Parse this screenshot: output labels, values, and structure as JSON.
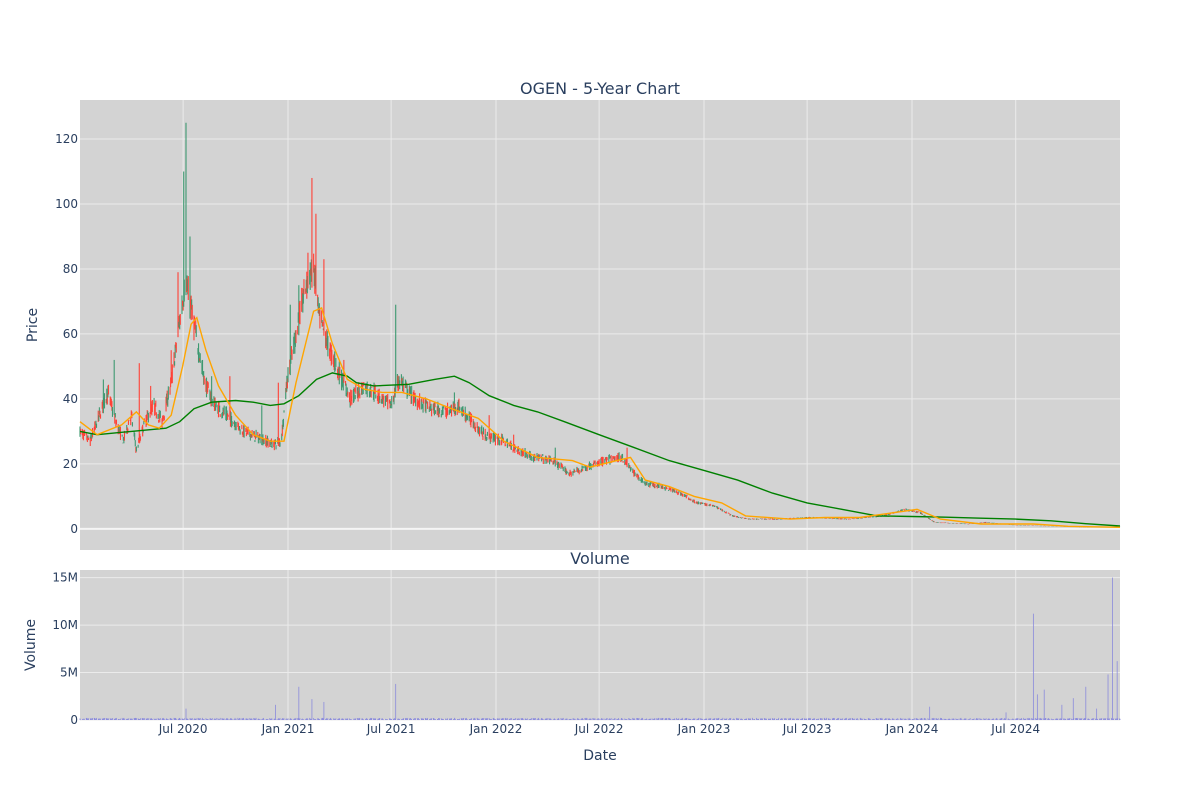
{
  "chart_data": [
    {
      "type": "candlestick",
      "title": "OGEN - 5-Year Chart",
      "xlabel": "",
      "ylabel": "Price",
      "xlim": [
        "2020-01-02",
        "2024-12-31"
      ],
      "ylim": [
        -6.5,
        132
      ],
      "yticks": [
        0,
        20,
        40,
        60,
        80,
        100,
        120
      ],
      "background": "#d3d3d3",
      "grid": true,
      "legend": "none",
      "colors": {
        "increasing": "#3d9970",
        "decreasing": "#ff4136",
        "ma_short": "#ffa500",
        "ma_long": "#008000"
      },
      "price_anchors": [
        [
          "2020-01-02",
          30
        ],
        [
          "2020-01-20",
          27
        ],
        [
          "2020-02-05",
          35
        ],
        [
          "2020-02-20",
          42
        ],
        [
          "2020-03-05",
          33
        ],
        [
          "2020-03-18",
          27
        ],
        [
          "2020-04-01",
          35
        ],
        [
          "2020-04-10",
          24
        ],
        [
          "2020-04-25",
          33
        ],
        [
          "2020-05-10",
          38
        ],
        [
          "2020-05-25",
          33
        ],
        [
          "2020-06-10",
          45
        ],
        [
          "2020-06-25",
          64
        ],
        [
          "2020-07-05",
          76
        ],
        [
          "2020-07-15",
          68
        ],
        [
          "2020-07-25",
          58
        ],
        [
          "2020-08-08",
          45
        ],
        [
          "2020-08-25",
          38
        ],
        [
          "2020-09-15",
          35
        ],
        [
          "2020-10-15",
          30
        ],
        [
          "2020-11-10",
          28
        ],
        [
          "2020-12-05",
          26
        ],
        [
          "2020-12-20",
          27
        ],
        [
          "2020-12-30",
          45
        ],
        [
          "2021-01-15",
          60
        ],
        [
          "2021-02-01",
          75
        ],
        [
          "2021-02-15",
          80
        ],
        [
          "2021-02-25",
          65
        ],
        [
          "2021-03-15",
          55
        ],
        [
          "2021-04-01",
          48
        ],
        [
          "2021-04-20",
          40
        ],
        [
          "2021-05-15",
          44
        ],
        [
          "2021-06-10",
          41
        ],
        [
          "2021-07-01",
          38
        ],
        [
          "2021-07-15",
          46
        ],
        [
          "2021-08-10",
          40
        ],
        [
          "2021-09-10",
          37
        ],
        [
          "2021-10-10",
          36
        ],
        [
          "2021-10-25",
          38
        ],
        [
          "2021-11-15",
          34
        ],
        [
          "2021-12-10",
          29
        ],
        [
          "2022-01-15",
          27
        ],
        [
          "2022-02-10",
          24
        ],
        [
          "2022-03-10",
          22
        ],
        [
          "2022-04-10",
          21
        ],
        [
          "2022-05-10",
          17
        ],
        [
          "2022-06-10",
          19
        ],
        [
          "2022-07-10",
          21
        ],
        [
          "2022-08-10",
          22
        ],
        [
          "2022-09-01",
          17
        ],
        [
          "2022-09-20",
          14
        ],
        [
          "2022-10-20",
          13
        ],
        [
          "2022-11-20",
          11
        ],
        [
          "2022-12-20",
          8
        ],
        [
          "2023-01-20",
          7
        ],
        [
          "2023-02-20",
          4
        ],
        [
          "2023-03-20",
          3
        ],
        [
          "2023-05-10",
          3
        ],
        [
          "2023-07-10",
          3.5
        ],
        [
          "2023-09-10",
          3
        ],
        [
          "2023-11-10",
          4
        ],
        [
          "2023-12-20",
          6
        ],
        [
          "2024-01-15",
          5
        ],
        [
          "2024-02-10",
          2
        ],
        [
          "2024-04-10",
          1.5
        ],
        [
          "2024-05-10",
          2
        ],
        [
          "2024-07-10",
          1
        ],
        [
          "2024-09-10",
          0.8
        ],
        [
          "2024-11-10",
          0.5
        ],
        [
          "2024-12-31",
          0.6
        ]
      ],
      "spikes": [
        [
          "2020-02-12",
          46
        ],
        [
          "2020-03-01",
          52
        ],
        [
          "2020-04-15",
          51
        ],
        [
          "2020-05-05",
          44
        ],
        [
          "2020-06-10",
          55
        ],
        [
          "2020-06-22",
          79
        ],
        [
          "2020-07-02",
          110
        ],
        [
          "2020-07-06",
          125
        ],
        [
          "2020-07-12",
          90
        ],
        [
          "2020-08-20",
          47
        ],
        [
          "2020-09-20",
          47
        ],
        [
          "2020-11-15",
          38
        ],
        [
          "2020-12-15",
          45
        ],
        [
          "2021-01-05",
          69
        ],
        [
          "2021-01-20",
          75
        ],
        [
          "2021-02-05",
          85
        ],
        [
          "2021-02-12",
          108
        ],
        [
          "2021-02-20",
          97
        ],
        [
          "2021-03-05",
          83
        ],
        [
          "2021-04-10",
          52
        ],
        [
          "2021-07-10",
          69
        ],
        [
          "2021-10-20",
          42
        ],
        [
          "2021-12-20",
          35
        ],
        [
          "2022-02-01",
          29
        ],
        [
          "2022-04-15",
          25
        ],
        [
          "2022-08-20",
          25
        ]
      ],
      "ma_short": [
        [
          "2020-01-02",
          33
        ],
        [
          "2020-02-01",
          29
        ],
        [
          "2020-03-15",
          32
        ],
        [
          "2020-04-10",
          36
        ],
        [
          "2020-05-01",
          32
        ],
        [
          "2020-05-20",
          31
        ],
        [
          "2020-06-10",
          35
        ],
        [
          "2020-06-30",
          50
        ],
        [
          "2020-07-15",
          63
        ],
        [
          "2020-07-25",
          65
        ],
        [
          "2020-08-10",
          55
        ],
        [
          "2020-09-01",
          44
        ],
        [
          "2020-10-01",
          35
        ],
        [
          "2020-11-01",
          29
        ],
        [
          "2020-12-01",
          27
        ],
        [
          "2020-12-25",
          27
        ],
        [
          "2021-01-15",
          45
        ],
        [
          "2021-02-15",
          67
        ],
        [
          "2021-03-01",
          68
        ],
        [
          "2021-03-20",
          57
        ],
        [
          "2021-04-15",
          46
        ],
        [
          "2021-05-15",
          43
        ],
        [
          "2021-06-15",
          42
        ],
        [
          "2021-07-20",
          42
        ],
        [
          "2021-09-01",
          40
        ],
        [
          "2021-10-15",
          37
        ],
        [
          "2021-12-01",
          34
        ],
        [
          "2022-01-15",
          27
        ],
        [
          "2022-03-15",
          22
        ],
        [
          "2022-05-15",
          21
        ],
        [
          "2022-06-15",
          19
        ],
        [
          "2022-08-01",
          21
        ],
        [
          "2022-08-25",
          22
        ],
        [
          "2022-09-20",
          15
        ],
        [
          "2022-11-01",
          13
        ],
        [
          "2022-12-15",
          10
        ],
        [
          "2023-02-01",
          8
        ],
        [
          "2023-03-15",
          4
        ],
        [
          "2023-06-01",
          3
        ],
        [
          "2023-08-01",
          3.5
        ],
        [
          "2023-10-01",
          3.5
        ],
        [
          "2023-12-01",
          5
        ],
        [
          "2024-01-10",
          6
        ],
        [
          "2024-02-20",
          3
        ],
        [
          "2024-05-01",
          1.5
        ],
        [
          "2024-08-01",
          1.5
        ],
        [
          "2024-10-01",
          0.8
        ],
        [
          "2024-12-31",
          0.5
        ]
      ],
      "ma_long": [
        [
          "2020-01-02",
          30
        ],
        [
          "2020-02-01",
          29
        ],
        [
          "2020-04-01",
          30
        ],
        [
          "2020-06-01",
          31
        ],
        [
          "2020-06-25",
          33
        ],
        [
          "2020-07-20",
          37
        ],
        [
          "2020-08-20",
          39
        ],
        [
          "2020-10-01",
          39.5
        ],
        [
          "2020-11-01",
          39
        ],
        [
          "2020-12-01",
          38
        ],
        [
          "2020-12-25",
          38.5
        ],
        [
          "2021-01-20",
          41
        ],
        [
          "2021-02-20",
          46
        ],
        [
          "2021-03-20",
          48
        ],
        [
          "2021-04-15",
          47
        ],
        [
          "2021-05-01",
          45
        ],
        [
          "2021-06-01",
          44
        ],
        [
          "2021-08-01",
          44.5
        ],
        [
          "2021-09-15",
          46
        ],
        [
          "2021-10-20",
          47
        ],
        [
          "2021-11-15",
          45
        ],
        [
          "2021-12-20",
          41
        ],
        [
          "2022-02-01",
          38
        ],
        [
          "2022-03-15",
          36
        ],
        [
          "2022-05-01",
          33
        ],
        [
          "2022-07-01",
          29
        ],
        [
          "2022-09-01",
          25
        ],
        [
          "2022-11-01",
          21
        ],
        [
          "2023-01-01",
          18
        ],
        [
          "2023-03-01",
          15
        ],
        [
          "2023-05-01",
          11
        ],
        [
          "2023-07-01",
          8
        ],
        [
          "2023-09-01",
          6
        ],
        [
          "2023-11-01",
          4
        ],
        [
          "2024-01-01",
          3.8
        ],
        [
          "2024-03-01",
          3.6
        ],
        [
          "2024-05-01",
          3.3
        ],
        [
          "2024-07-01",
          3
        ],
        [
          "2024-09-01",
          2.5
        ],
        [
          "2024-11-01",
          1.6
        ],
        [
          "2024-12-31",
          0.9
        ]
      ]
    },
    {
      "type": "bar",
      "title": "Volume",
      "xlabel": "Date",
      "ylabel": "Volume",
      "xlim": [
        "2020-01-02",
        "2024-12-31"
      ],
      "ylim": [
        0,
        15800000
      ],
      "yticks": [
        0,
        5000000,
        10000000,
        15000000
      ],
      "ytick_labels": [
        "0",
        "5M",
        "10M",
        "15M"
      ],
      "xticks": [
        "2020-07-01",
        "2021-01-01",
        "2021-07-01",
        "2022-01-01",
        "2022-07-01",
        "2023-01-01",
        "2023-07-01",
        "2024-01-01",
        "2024-07-01"
      ],
      "xtick_labels": [
        "Jul 2020",
        "Jan 2021",
        "Jul 2021",
        "Jan 2022",
        "Jul 2022",
        "Jan 2023",
        "Jul 2023",
        "Jan 2024",
        "Jul 2024"
      ],
      "bar_color": "#8b8bdc",
      "baseline_volume": 150000,
      "volume_spikes": [
        [
          "2020-07-06",
          1200000
        ],
        [
          "2020-12-10",
          1600000
        ],
        [
          "2021-01-20",
          3500000
        ],
        [
          "2021-02-12",
          2200000
        ],
        [
          "2021-03-05",
          1900000
        ],
        [
          "2021-07-10",
          3800000
        ],
        [
          "2024-02-01",
          1400000
        ],
        [
          "2024-06-15",
          800000
        ],
        [
          "2024-08-01",
          11200000
        ],
        [
          "2024-08-08",
          2700000
        ],
        [
          "2024-08-20",
          3200000
        ],
        [
          "2024-09-20",
          1600000
        ],
        [
          "2024-10-10",
          2300000
        ],
        [
          "2024-11-01",
          3500000
        ],
        [
          "2024-11-20",
          1200000
        ],
        [
          "2024-12-10",
          4800000
        ],
        [
          "2024-12-18",
          15000000
        ],
        [
          "2024-12-26",
          6200000
        ]
      ]
    }
  ]
}
